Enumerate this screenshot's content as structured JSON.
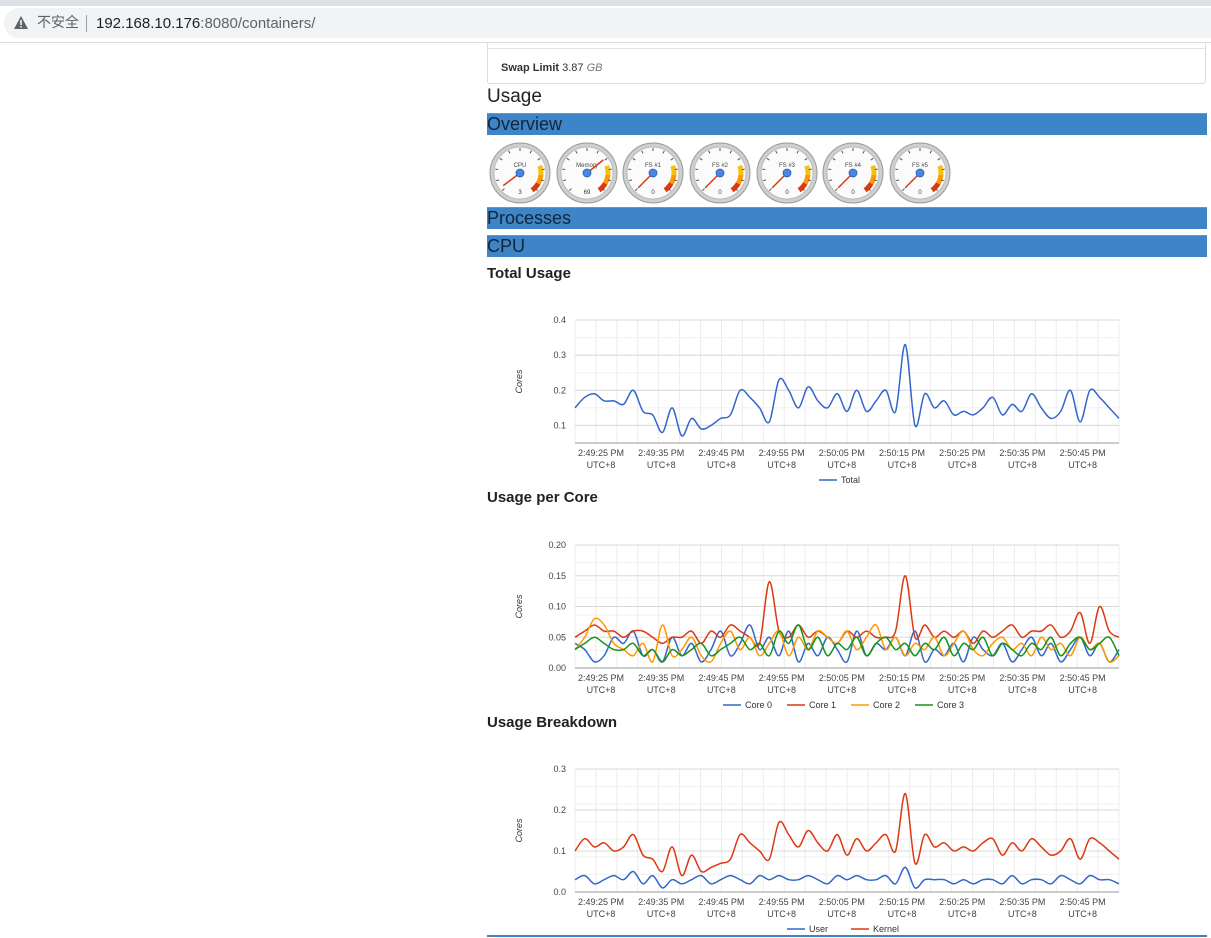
{
  "browser": {
    "security_label": "不安全",
    "url_host": "192.168.10.176",
    "url_rest": ":8080/containers/"
  },
  "swap": {
    "label": "Swap Limit",
    "value": "3.87",
    "unit": "GB"
  },
  "headings": {
    "usage": "Usage",
    "overview": "Overview",
    "processes": "Processes",
    "cpu": "CPU",
    "total_usage": "Total Usage",
    "usage_per_core": "Usage per Core",
    "usage_breakdown": "Usage Breakdown"
  },
  "gauges": [
    {
      "label": "CPU",
      "value": "3"
    },
    {
      "label": "Memory",
      "value": "69"
    },
    {
      "label": "FS #1",
      "value": "0"
    },
    {
      "label": "FS #2",
      "value": "0"
    },
    {
      "label": "FS #3",
      "value": "0"
    },
    {
      "label": "FS #4",
      "value": "0"
    },
    {
      "label": "FS #5",
      "value": "0"
    }
  ],
  "chart_data": [
    {
      "type": "line",
      "title": "Total Usage",
      "ylabel": "Cores",
      "ylim": [
        0.05,
        0.4
      ],
      "yticks": [
        0.1,
        0.2,
        0.3,
        0.4
      ],
      "ytick_labels": [
        "0.1",
        "0.2",
        "0.3",
        "0.4"
      ],
      "xtick_labels": [
        "2:49:25 PM",
        "2:49:35 PM",
        "2:49:45 PM",
        "2:49:55 PM",
        "2:50:05 PM",
        "2:50:15 PM",
        "2:50:25 PM",
        "2:50:35 PM",
        "2:50:45 PM"
      ],
      "xtick_sublabel": "UTC+8",
      "series": [
        {
          "name": "Total",
          "color": "#3366cc",
          "values": [
            0.15,
            0.18,
            0.19,
            0.17,
            0.17,
            0.16,
            0.2,
            0.14,
            0.13,
            0.08,
            0.15,
            0.07,
            0.12,
            0.09,
            0.1,
            0.12,
            0.13,
            0.2,
            0.18,
            0.15,
            0.11,
            0.23,
            0.2,
            0.15,
            0.21,
            0.17,
            0.15,
            0.19,
            0.14,
            0.2,
            0.14,
            0.17,
            0.2,
            0.14,
            0.33,
            0.1,
            0.19,
            0.15,
            0.17,
            0.13,
            0.14,
            0.13,
            0.15,
            0.18,
            0.13,
            0.16,
            0.14,
            0.19,
            0.15,
            0.12,
            0.14,
            0.2,
            0.11,
            0.2,
            0.18,
            0.15,
            0.12
          ]
        }
      ]
    },
    {
      "type": "line",
      "title": "Usage per Core",
      "ylabel": "Cores",
      "ylim": [
        0,
        0.2
      ],
      "yticks": [
        0,
        0.05,
        0.1,
        0.15,
        0.2
      ],
      "ytick_labels": [
        "0.00",
        "0.05",
        "0.10",
        "0.15",
        "0.20"
      ],
      "xtick_labels": [
        "2:49:25 PM",
        "2:49:35 PM",
        "2:49:45 PM",
        "2:49:55 PM",
        "2:50:05 PM",
        "2:50:15 PM",
        "2:50:25 PM",
        "2:50:35 PM",
        "2:50:45 PM"
      ],
      "xtick_sublabel": "UTC+8",
      "series": [
        {
          "name": "Core 0",
          "color": "#3366cc",
          "values": [
            0.04,
            0.03,
            0.01,
            0.02,
            0.05,
            0.04,
            0.06,
            0.02,
            0.03,
            0.01,
            0.05,
            0.02,
            0.04,
            0.01,
            0.03,
            0.06,
            0.02,
            0.04,
            0.07,
            0.03,
            0.05,
            0.02,
            0.06,
            0.01,
            0.04,
            0.02,
            0.05,
            0.03,
            0.01,
            0.06,
            0.02,
            0.04,
            0.03,
            0.05,
            0.02,
            0.06,
            0.01,
            0.03,
            0.02,
            0.04,
            0.01,
            0.05,
            0.03,
            0.02,
            0.04,
            0.01,
            0.03,
            0.05,
            0.02,
            0.04,
            0.01,
            0.03,
            0.05,
            0.02,
            0.04,
            0.01,
            0.03
          ]
        },
        {
          "name": "Core 1",
          "color": "#dc3912",
          "values": [
            0.05,
            0.06,
            0.07,
            0.06,
            0.06,
            0.05,
            0.06,
            0.06,
            0.05,
            0.04,
            0.05,
            0.05,
            0.06,
            0.04,
            0.06,
            0.05,
            0.07,
            0.06,
            0.05,
            0.04,
            0.14,
            0.06,
            0.05,
            0.07,
            0.05,
            0.06,
            0.05,
            0.04,
            0.06,
            0.05,
            0.06,
            0.05,
            0.05,
            0.06,
            0.15,
            0.05,
            0.07,
            0.05,
            0.06,
            0.05,
            0.06,
            0.04,
            0.06,
            0.05,
            0.06,
            0.07,
            0.05,
            0.06,
            0.06,
            0.07,
            0.05,
            0.06,
            0.09,
            0.04,
            0.1,
            0.06,
            0.05
          ]
        },
        {
          "name": "Core 2",
          "color": "#ff9900",
          "values": [
            0.03,
            0.05,
            0.08,
            0.07,
            0.04,
            0.03,
            0.02,
            0.04,
            0.01,
            0.07,
            0.02,
            0.03,
            0.05,
            0.02,
            0.01,
            0.04,
            0.06,
            0.03,
            0.05,
            0.02,
            0.04,
            0.06,
            0.02,
            0.05,
            0.03,
            0.06,
            0.05,
            0.04,
            0.06,
            0.03,
            0.05,
            0.07,
            0.03,
            0.05,
            0.02,
            0.04,
            0.03,
            0.05,
            0.02,
            0.04,
            0.06,
            0.03,
            0.02,
            0.04,
            0.05,
            0.03,
            0.04,
            0.02,
            0.05,
            0.03,
            0.04,
            0.02,
            0.05,
            0.03,
            0.04,
            0.01,
            0.02
          ]
        },
        {
          "name": "Core 3",
          "color": "#109618",
          "values": [
            0.03,
            0.04,
            0.05,
            0.04,
            0.03,
            0.03,
            0.04,
            0.02,
            0.03,
            0.01,
            0.03,
            0.02,
            0.03,
            0.04,
            0.02,
            0.03,
            0.04,
            0.05,
            0.03,
            0.04,
            0.02,
            0.06,
            0.04,
            0.07,
            0.03,
            0.05,
            0.02,
            0.04,
            0.03,
            0.05,
            0.02,
            0.04,
            0.05,
            0.03,
            0.04,
            0.02,
            0.04,
            0.03,
            0.05,
            0.02,
            0.04,
            0.03,
            0.05,
            0.02,
            0.04,
            0.03,
            0.02,
            0.04,
            0.03,
            0.05,
            0.02,
            0.04,
            0.05,
            0.03,
            0.04,
            0.05,
            0.02
          ]
        }
      ]
    },
    {
      "type": "line",
      "title": "Usage Breakdown",
      "ylabel": "Cores",
      "ylim": [
        0,
        0.3
      ],
      "yticks": [
        0,
        0.1,
        0.2,
        0.3
      ],
      "ytick_labels": [
        "0.0",
        "0.1",
        "0.2",
        "0.3"
      ],
      "xtick_labels": [
        "2:49:25 PM",
        "2:49:35 PM",
        "2:49:45 PM",
        "2:49:55 PM",
        "2:50:05 PM",
        "2:50:15 PM",
        "2:50:25 PM",
        "2:50:35 PM",
        "2:50:45 PM"
      ],
      "xtick_sublabel": "UTC+8",
      "series": [
        {
          "name": "User",
          "color": "#3366cc",
          "values": [
            0.03,
            0.04,
            0.02,
            0.03,
            0.04,
            0.03,
            0.05,
            0.02,
            0.04,
            0.01,
            0.03,
            0.02,
            0.03,
            0.04,
            0.02,
            0.03,
            0.04,
            0.03,
            0.02,
            0.04,
            0.03,
            0.04,
            0.03,
            0.03,
            0.04,
            0.03,
            0.02,
            0.04,
            0.03,
            0.04,
            0.03,
            0.03,
            0.04,
            0.02,
            0.06,
            0.01,
            0.03,
            0.03,
            0.03,
            0.02,
            0.03,
            0.02,
            0.03,
            0.03,
            0.02,
            0.04,
            0.02,
            0.03,
            0.03,
            0.02,
            0.04,
            0.03,
            0.02,
            0.04,
            0.03,
            0.03,
            0.02
          ]
        },
        {
          "name": "Kernel",
          "color": "#dc3912",
          "values": [
            0.1,
            0.13,
            0.11,
            0.12,
            0.1,
            0.11,
            0.14,
            0.09,
            0.08,
            0.05,
            0.11,
            0.04,
            0.09,
            0.05,
            0.06,
            0.07,
            0.08,
            0.14,
            0.12,
            0.1,
            0.08,
            0.17,
            0.14,
            0.11,
            0.15,
            0.12,
            0.1,
            0.14,
            0.09,
            0.13,
            0.1,
            0.12,
            0.14,
            0.1,
            0.24,
            0.07,
            0.14,
            0.11,
            0.12,
            0.1,
            0.11,
            0.1,
            0.12,
            0.13,
            0.09,
            0.12,
            0.1,
            0.13,
            0.11,
            0.09,
            0.1,
            0.13,
            0.08,
            0.13,
            0.12,
            0.1,
            0.08
          ]
        }
      ]
    }
  ]
}
